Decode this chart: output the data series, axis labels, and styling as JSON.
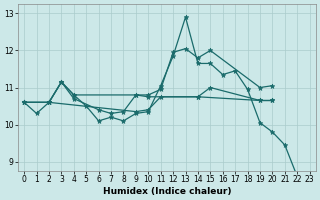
{
  "xlabel": "Humidex (Indice chaleur)",
  "bg_color": "#cce8e8",
  "grid_color": "#aacccc",
  "line_color": "#1a6b6b",
  "xlim": [
    -0.5,
    23.5
  ],
  "ylim": [
    8.75,
    13.25
  ],
  "yticks": [
    9,
    10,
    11,
    12,
    13
  ],
  "xticks": [
    0,
    1,
    2,
    3,
    4,
    5,
    6,
    7,
    8,
    9,
    10,
    11,
    12,
    13,
    14,
    15,
    16,
    17,
    18,
    19,
    20,
    21,
    22,
    23
  ],
  "series1_x": [
    0,
    1,
    2,
    3,
    4,
    5,
    6,
    7,
    8,
    9,
    10,
    11,
    12,
    13,
    14,
    15,
    16,
    17,
    18,
    19,
    20,
    21,
    22,
    23
  ],
  "series1_y": [
    10.6,
    10.3,
    10.6,
    11.15,
    10.8,
    10.5,
    10.1,
    10.2,
    10.1,
    10.3,
    10.35,
    11.05,
    11.85,
    12.9,
    11.65,
    11.65,
    11.35,
    11.45,
    10.95,
    10.05,
    9.8,
    9.45,
    8.6,
    8.55
  ],
  "series2_x": [
    0,
    2,
    3,
    4,
    9,
    10,
    11,
    12,
    13,
    14,
    15,
    19,
    20
  ],
  "series2_y": [
    10.6,
    10.6,
    11.15,
    10.8,
    10.8,
    10.8,
    10.95,
    11.95,
    12.05,
    11.8,
    12.0,
    11.0,
    11.05
  ],
  "series3_x": [
    0,
    2,
    3,
    4,
    6,
    7,
    8,
    9,
    10,
    14,
    19,
    20
  ],
  "series3_y": [
    10.6,
    10.6,
    11.15,
    10.7,
    10.4,
    10.3,
    10.35,
    10.8,
    10.75,
    10.75,
    10.65,
    10.65
  ],
  "series4_x": [
    0,
    2,
    9,
    10,
    11,
    14,
    15,
    19,
    20
  ],
  "series4_y": [
    10.6,
    10.6,
    10.35,
    10.4,
    10.75,
    10.75,
    11.0,
    10.65,
    10.65
  ]
}
